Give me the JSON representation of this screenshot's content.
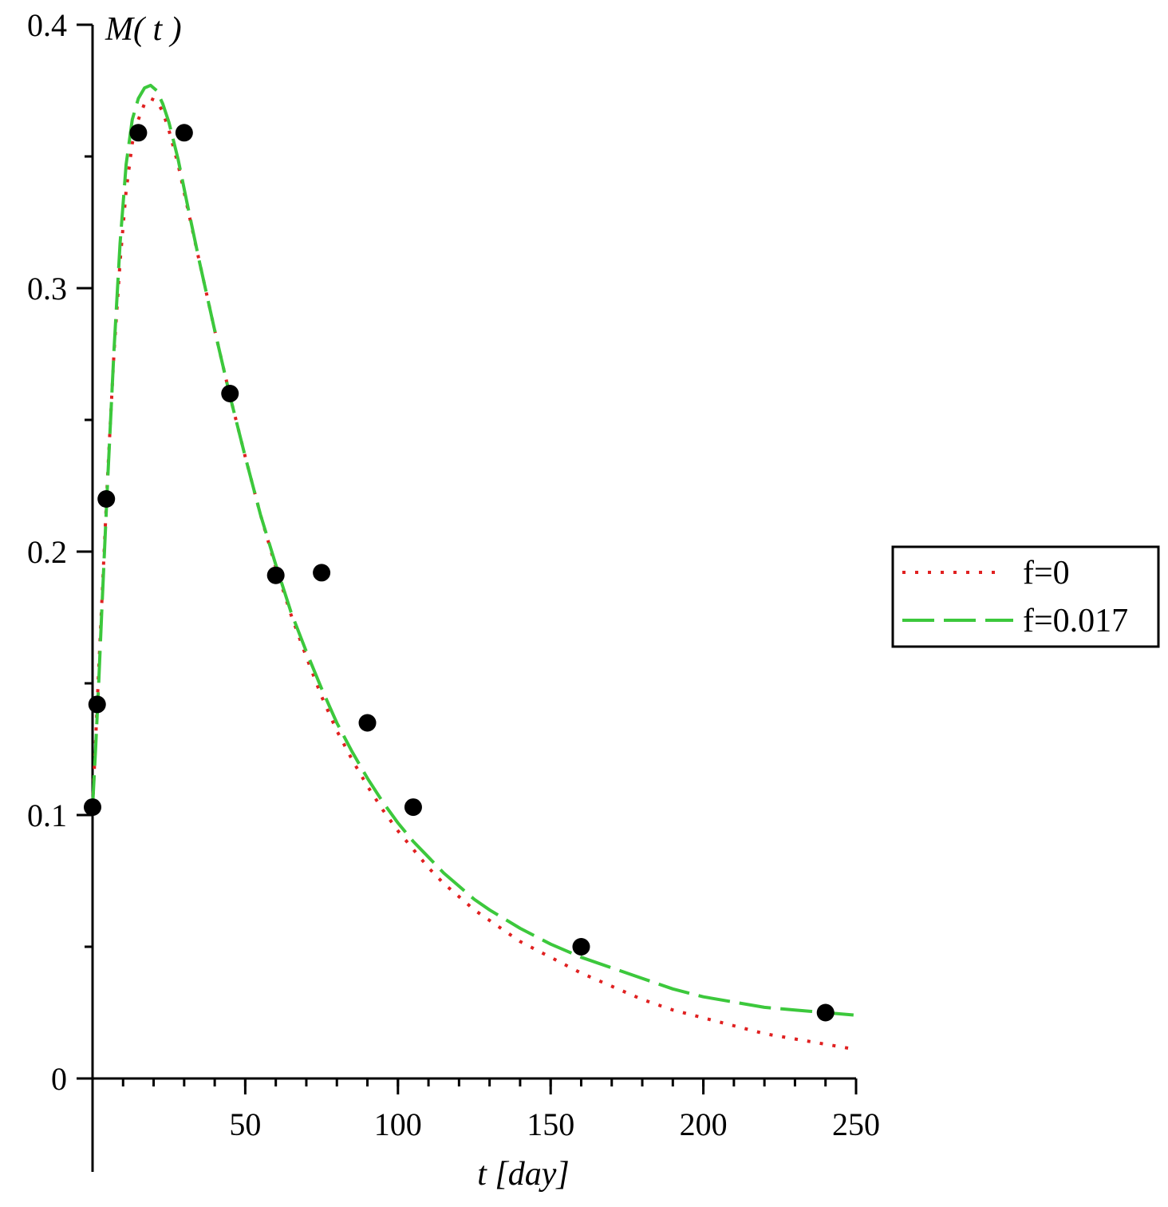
{
  "chart_data": {
    "type": "line",
    "title": "",
    "xlabel": "t [day]",
    "ylabel": "M( t )",
    "xlim": [
      0,
      250
    ],
    "ylim": [
      0,
      0.4
    ],
    "x_ticks": [
      {
        "value": 50,
        "label": "50"
      },
      {
        "value": 100,
        "label": "100"
      },
      {
        "value": 150,
        "label": "150"
      },
      {
        "value": 200,
        "label": "200"
      },
      {
        "value": 250,
        "label": "250"
      }
    ],
    "y_ticks": [
      {
        "value": 0,
        "label": "0"
      },
      {
        "value": 0.1,
        "label": "0.1"
      },
      {
        "value": 0.2,
        "label": "0.2"
      },
      {
        "value": 0.3,
        "label": "0.3"
      },
      {
        "value": 0.4,
        "label": "0.4"
      }
    ],
    "x_minor_step": 10,
    "y_minor_step": 0.05,
    "grid": false,
    "legend_position": "right",
    "observations": {
      "color": "#000000",
      "points": [
        {
          "x": 0,
          "y": 0.103
        },
        {
          "x": 1.5,
          "y": 0.142
        },
        {
          "x": 4.5,
          "y": 0.22
        },
        {
          "x": 15,
          "y": 0.359
        },
        {
          "x": 30,
          "y": 0.359
        },
        {
          "x": 45,
          "y": 0.26
        },
        {
          "x": 60,
          "y": 0.191
        },
        {
          "x": 75,
          "y": 0.192
        },
        {
          "x": 90,
          "y": 0.135
        },
        {
          "x": 105,
          "y": 0.103
        },
        {
          "x": 160,
          "y": 0.05
        },
        {
          "x": 240,
          "y": 0.025
        }
      ]
    },
    "series": [
      {
        "name": "f=0",
        "style": "dotted",
        "color": "#e02020",
        "x": [
          0,
          1,
          2,
          3,
          5,
          7,
          9,
          11,
          13,
          15,
          17,
          19,
          21,
          23,
          25,
          28,
          31,
          35,
          40,
          45,
          50,
          55,
          60,
          65,
          70,
          75,
          80,
          85,
          90,
          95,
          100,
          105,
          110,
          115,
          120,
          125,
          130,
          140,
          150,
          160,
          170,
          180,
          190,
          200,
          210,
          220,
          230,
          240,
          250
        ],
        "y": [
          0.103,
          0.128,
          0.155,
          0.18,
          0.23,
          0.275,
          0.31,
          0.337,
          0.355,
          0.364,
          0.37,
          0.372,
          0.371,
          0.367,
          0.36,
          0.347,
          0.331,
          0.31,
          0.284,
          0.259,
          0.236,
          0.214,
          0.194,
          0.176,
          0.16,
          0.145,
          0.132,
          0.121,
          0.111,
          0.102,
          0.094,
          0.087,
          0.08,
          0.074,
          0.069,
          0.064,
          0.06,
          0.052,
          0.046,
          0.04,
          0.035,
          0.03,
          0.026,
          0.023,
          0.02,
          0.017,
          0.015,
          0.013,
          0.011
        ]
      },
      {
        "name": "f=0.017",
        "style": "dashed",
        "color": "#3cc83c",
        "x": [
          0,
          1,
          2,
          3,
          5,
          7,
          9,
          11,
          13,
          15,
          17,
          19,
          21,
          23,
          25,
          28,
          31,
          35,
          40,
          45,
          50,
          55,
          60,
          65,
          70,
          75,
          80,
          85,
          90,
          95,
          100,
          105,
          110,
          115,
          120,
          125,
          130,
          140,
          150,
          160,
          170,
          180,
          190,
          200,
          210,
          220,
          230,
          240,
          250
        ],
        "y": [
          0.103,
          0.125,
          0.15,
          0.177,
          0.228,
          0.276,
          0.317,
          0.347,
          0.364,
          0.372,
          0.376,
          0.377,
          0.375,
          0.37,
          0.363,
          0.349,
          0.332,
          0.31,
          0.284,
          0.259,
          0.236,
          0.214,
          0.195,
          0.177,
          0.162,
          0.148,
          0.135,
          0.124,
          0.114,
          0.105,
          0.097,
          0.09,
          0.084,
          0.078,
          0.073,
          0.068,
          0.064,
          0.057,
          0.051,
          0.046,
          0.042,
          0.038,
          0.034,
          0.031,
          0.029,
          0.027,
          0.026,
          0.025,
          0.024
        ]
      }
    ]
  }
}
